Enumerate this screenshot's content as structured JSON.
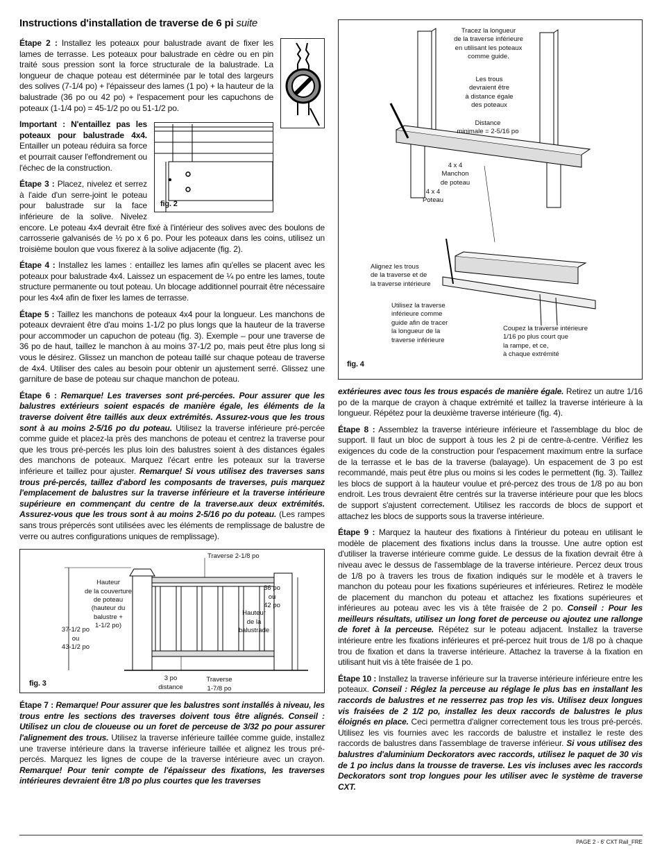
{
  "header": {
    "title": "Instructions d'installation de traverse de 6 pi",
    "title_suffix": "suite"
  },
  "paragraphs": [
    [
      "Étape 2 :",
      " Installez les poteaux pour balustrade avant de fixer les lames de terrasse. Les poteaux pour balustrade en cèdre ou en pin traité sous pression sont la force structurale de la balustrade. La longueur de chaque poteau est déterminée par le total des largeurs des solives (7-1/4 po) + l'épaisseur des lames (1 po) + la hauteur de la balustrade (36 po ou 42 po) + l'espacement pour les capuchons de poteaux (1-1/4 po) = 45-1/2 po ou 51-1/2 po."
    ],
    [
      "Important : N'entaillez pas les poteaux pour balustrade 4x4.",
      " Entailler un poteau réduira sa force et pourrait causer l'effondrement ou l'échec de la construction."
    ],
    [
      "Étape 3 :",
      " Placez, nivelez et serrez à l'aide d'un serre-joint le poteau pour balustrade sur la face inférieure de la solive. Nivelez encore. Le poteau 4x4 devrait être fixé à l'intérieur des solives avec des boulons de carrosserie galvanisés de ½ po x 6 po. Pour les poteaux dans les coins, utilisez un troisième boulon que vous fixerez à la solive adjacente (fig. 2)."
    ],
    [
      "Étape 4 :",
      " Installez les lames : entaillez les lames afin qu'elles se placent avec les poteaux pour balustrade 4x4. Laissez un espacement de ¼ po entre les lames, toute structure permanente ou tout poteau. Un blocage additionnel pourrait être nécessaire pour les 4x4 afin de fixer les lames de terrasse."
    ],
    [
      "Étape 5 :",
      " Taillez les manchons de poteaux 4x4 pour la longueur. Les manchons de poteaux devraient être d'au moins 1-1/2 po plus longs que la hauteur de la traverse pour accommoder un capuchon de poteau (fig. 3). Exemple – pour une traverse de 36 po de haut, taillez le manchon à au moins 37-1/2 po, mais peut être plus long si vous le désirez. Glissez un manchon de poteau taillé sur chaque poteau de traverse de 4x4. Utiliser des cales au besoin pour obtenir un ajustement serré. Glissez une garniture de base de poteau sur chaque manchon de poteau."
    ],
    [
      "Étape 6 :",
      " Remarque! Les traverses sont pré-percées. Pour assurer que les balustres extérieurs soient espacés de manière égale, les éléments de la traverse doivent être taillés aux deux extrémités. Assurez-vous que les trous sont à au moins 2-5/16 po du poteau.",
      " Utilisez la traverse inférieure pré-percée comme guide et placez-la près des manchons de poteau et centrez la traverse pour que les trous pré-percés les plus loin des balustres soient à des distances égales des manchons de poteaux.  Marquez l'écart entre les poteaux sur la traverse inférieure et taillez pour ajuster.",
      " Remarque! Si vous utilisez des traverses sans trous pré-percés, taillez d'abord les composants de traverses, puis marquez l'emplacement de balustres sur la traverse inférieure et la traverse intérieure supérieure en commençant du centre de la traverse.aux deux extrémités. Assurez-vous que les trous sont à au moins 2-5/16 po du poteau.",
      " (Les rampes sans trous prépercés sont utilisées avec les éléments de remplissage de balustre de verre ou autres configurations uniques de remplissage)."
    ],
    [
      "Étape 7 :",
      " Remarque! Pour assurer que les balustres sont installés à niveau, les trous entre les sections des traverses doivent tous être alignés. Conseil : Utilisez un clou de cloueuse ou un foret de perceuse de 3/32 po pour assurer l'alignement des trous.",
      " Utilisez la traverse inférieure taillée comme guide, installez une traverse intérieure dans la traverse inférieure taillée et alignez les trous pré-percés. Marquez les lignes de coupe de la traverse intérieure avec un crayon.",
      " Remarque! Pour tenir compte de l'épaisseur des fixations, les traverses intérieures devraient être 1/8 po plus courtes que les traverses",
      "extérieures avec tous les trous espacés de manière égale.",
      " Retirez un autre 1/16 po de la marque de crayon à chaque extrémité et taillez la traverse intérieure à la longueur. Répétez pour la deuxième traverse intérieure (fig. 4)."
    ],
    [
      "Étape 8 :",
      " Assemblez la traverse intérieure inférieure et l'assemblage du bloc de support. Il faut un bloc de support à tous les 2 pi de centre-à-centre. Vérifiez les exigences du code de la construction pour l'espacement maximum entre la surface de la terrasse et le bas de la traverse (balayage). Un espacement de 3 po est recommandé, mais peut être plus ou moins si les codes le permettent (fig. 3). Taillez les blocs de support à la hauteur voulue et pré-percez des trous de 1/8 po au bon endroit.  Les trous devraient être centrés sur la traverse intérieure pour que les blocs de support s'ajustent correctement.  Utilisez les raccords de blocs de support et attachez les blocs de supports sous la traverse intérieure."
    ],
    [
      "Étape 9 :",
      " Marquez la hauteur des fixations à l'intérieur du poteau en utilisant le modèle de placement des fixations inclus dans la trousse. Une autre option est d'utiliser la traverse intérieure comme guide. Le dessus de la fixation devrait être à niveau avec le dessus de l'assemblage de la traverse intérieure. Percez deux trous de 1/8 po à travers les trous de fixation indiqués sur le modèle et à travers le manchon du poteau pour les fixations supérieures et inférieures. Retirez le modèle de placement du manchon du poteau et attachez les fixations supérieures et inférieures au poteau avec les vis à tête fraisée de 2 po.",
      " Conseil : Pour les meilleurs résultats, utilisez un long foret de perceuse ou ajoutez une rallonge de foret à la perceuse.",
      " Répétez sur le poteau adjacent. Installez la traverse intérieure entre les fixations inférieures et pré-percez huit trous de 1/8 po à chaque trou de fixation et dans la traverse intérieure. Attachez la traverse à la fixation en utilisant huit vis à tête fraisée de 1 po."
    ],
    [
      "Étape 10 :",
      " Installez la traverse inférieure sur la traverse intérieure inférieure entre les poteaux.",
      " Conseil : Réglez la perceuse au réglage le plus bas en installant les raccords de balustres et ne resserrez pas trop les vis. Utilisez deux longues vis fraisées de 2 1/2 po, installez les deux raccords de balustres le plus éloignés en place.",
      " Ceci permettra d'aligner correctement tous les trous pré-percés. Utilisez les vis fournies avec les raccords de balustre et installez le reste des raccords de balustres dans l'assemblage de traverse inférieur.",
      " Si vous utilisez des balustres d'aluminium Deckorators avec raccords, utilisez le paquet de 30 vis de 1 po inclus dans la trousse de traverse. Les vis incluses avec les raccords Deckorators sont trop longues pour les utiliser avec le système de traverse CXT."
    ]
  ],
  "figures": {
    "fig2": {
      "caption": "fig. 2"
    },
    "fig3": {
      "caption": "fig. 3",
      "labels": [
        [
          "Traverse 2-1/8 po"
        ],
        [
          "Hauteur",
          "de la couverture",
          "de poteau",
          "(hauteur du",
          "balustre +",
          "1-1/2 po)"
        ],
        [
          "36 po",
          "ou",
          "42 po"
        ],
        [
          "Hauteur",
          "de la",
          "balustrade"
        ],
        [
          "37-1/2 po",
          "ou",
          "43-1/2 po"
        ],
        [
          "3 po",
          "distance"
        ],
        [
          "Traverse",
          "1-7/8 po"
        ]
      ]
    },
    "fig4": {
      "caption": "fig. 4",
      "labels": [
        [
          "Tracez la longueur",
          "de la traverse inférieure",
          "en utilisant les poteaux",
          "comme guide."
        ],
        [
          "Les trous",
          "devraient être",
          "à distance égale",
          "des poteaux"
        ],
        [
          "Distance",
          "minimale = 2-5/16 po"
        ],
        [
          "4 x 4",
          "Manchon",
          "de poteau"
        ],
        [
          "4 x 4",
          "Poteau"
        ],
        [
          "Alignez les trous",
          "de la traverse et de",
          "la traverse intérieure"
        ],
        [
          "Utilisez la traverse",
          "inférieure comme",
          "guide afin de tracer",
          "la longueur de la",
          "traverse inférieure"
        ],
        [
          "Coupez la traverse intérieure",
          "1/16 po plus court que",
          "la rampe, et ce,",
          "à chaque extrémité"
        ]
      ]
    }
  },
  "footer": {
    "page": "PAGE 2 - 6' CXT Rail_FRE"
  }
}
